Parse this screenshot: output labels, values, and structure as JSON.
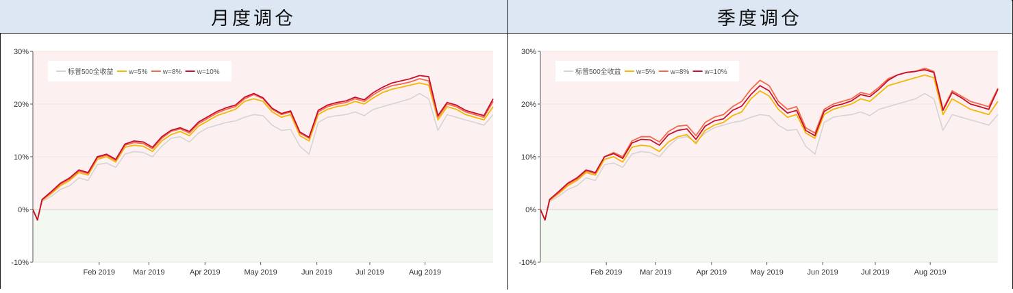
{
  "panels": [
    {
      "title": "月度调仓",
      "chart_data": {
        "type": "line",
        "ylim": [
          -0.1,
          0.3
        ],
        "yticks": [
          "30%",
          "20%",
          "10%",
          "0%",
          "-10%"
        ],
        "ytick_values": [
          0.3,
          0.2,
          0.1,
          0.0,
          -0.1
        ],
        "xticks": [
          "Feb 2019",
          "Mar 2019",
          "Apr 2019",
          "May 2019",
          "Jun 2019",
          "Jul 2019",
          "Aug 2019"
        ],
        "xtick_positions": [
          0.144,
          0.252,
          0.374,
          0.495,
          0.617,
          0.732,
          0.852
        ],
        "legend_position": "top-left",
        "background_positive": "#fdf0f0",
        "background_negative": "#f3f9f1",
        "series": [
          {
            "name": "标普500全收益",
            "color": "#d4d4d4",
            "x": [
              0,
              0.01,
              0.02,
              0.04,
              0.06,
              0.08,
              0.1,
              0.12,
              0.14,
              0.16,
              0.18,
              0.2,
              0.22,
              0.24,
              0.26,
              0.28,
              0.3,
              0.32,
              0.34,
              0.36,
              0.38,
              0.4,
              0.42,
              0.44,
              0.46,
              0.48,
              0.5,
              0.52,
              0.54,
              0.56,
              0.58,
              0.6,
              0.62,
              0.64,
              0.66,
              0.68,
              0.7,
              0.72,
              0.74,
              0.76,
              0.78,
              0.8,
              0.82,
              0.84,
              0.86,
              0.88,
              0.9,
              0.92,
              0.94,
              0.96,
              0.98,
              1.0
            ],
            "y": [
              0.0,
              -0.02,
              0.015,
              0.025,
              0.038,
              0.045,
              0.06,
              0.055,
              0.085,
              0.088,
              0.08,
              0.105,
              0.11,
              0.108,
              0.1,
              0.12,
              0.135,
              0.138,
              0.128,
              0.145,
              0.155,
              0.16,
              0.165,
              0.168,
              0.175,
              0.18,
              0.178,
              0.16,
              0.15,
              0.152,
              0.12,
              0.105,
              0.165,
              0.175,
              0.178,
              0.18,
              0.185,
              0.178,
              0.19,
              0.195,
              0.2,
              0.205,
              0.21,
              0.22,
              0.21,
              0.15,
              0.18,
              0.175,
              0.17,
              0.165,
              0.16,
              0.18
            ]
          },
          {
            "name": "w=5%",
            "color": "#f2b705",
            "x": [
              0,
              0.01,
              0.02,
              0.04,
              0.06,
              0.08,
              0.1,
              0.12,
              0.14,
              0.16,
              0.18,
              0.2,
              0.22,
              0.24,
              0.26,
              0.28,
              0.3,
              0.32,
              0.34,
              0.36,
              0.38,
              0.4,
              0.42,
              0.44,
              0.46,
              0.48,
              0.5,
              0.52,
              0.54,
              0.56,
              0.58,
              0.6,
              0.62,
              0.64,
              0.66,
              0.68,
              0.7,
              0.72,
              0.74,
              0.76,
              0.78,
              0.8,
              0.82,
              0.84,
              0.86,
              0.88,
              0.9,
              0.92,
              0.94,
              0.96,
              0.98,
              1.0
            ],
            "y": [
              0.0,
              -0.02,
              0.017,
              0.03,
              0.045,
              0.055,
              0.07,
              0.065,
              0.095,
              0.1,
              0.09,
              0.118,
              0.122,
              0.12,
              0.11,
              0.13,
              0.142,
              0.148,
              0.14,
              0.158,
              0.168,
              0.178,
              0.184,
              0.19,
              0.205,
              0.21,
              0.205,
              0.185,
              0.175,
              0.18,
              0.14,
              0.13,
              0.18,
              0.19,
              0.195,
              0.198,
              0.205,
              0.2,
              0.212,
              0.222,
              0.228,
              0.232,
              0.236,
              0.24,
              0.236,
              0.17,
              0.195,
              0.19,
              0.18,
              0.175,
              0.17,
              0.195
            ]
          },
          {
            "name": "w=8%",
            "color": "#f26a4b",
            "x": [
              0,
              0.01,
              0.02,
              0.04,
              0.06,
              0.08,
              0.1,
              0.12,
              0.14,
              0.16,
              0.18,
              0.2,
              0.22,
              0.24,
              0.26,
              0.28,
              0.3,
              0.32,
              0.34,
              0.36,
              0.38,
              0.4,
              0.42,
              0.44,
              0.46,
              0.48,
              0.5,
              0.52,
              0.54,
              0.56,
              0.58,
              0.6,
              0.62,
              0.64,
              0.66,
              0.68,
              0.7,
              0.72,
              0.74,
              0.76,
              0.78,
              0.8,
              0.82,
              0.84,
              0.86,
              0.88,
              0.9,
              0.92,
              0.94,
              0.96,
              0.98,
              1.0
            ],
            "y": [
              0.0,
              -0.02,
              0.018,
              0.032,
              0.048,
              0.058,
              0.073,
              0.068,
              0.098,
              0.103,
              0.093,
              0.122,
              0.127,
              0.125,
              0.115,
              0.135,
              0.148,
              0.153,
              0.145,
              0.163,
              0.173,
              0.183,
              0.19,
              0.195,
              0.21,
              0.218,
              0.21,
              0.19,
              0.18,
              0.185,
              0.145,
              0.135,
              0.185,
              0.195,
              0.2,
              0.203,
              0.21,
              0.205,
              0.218,
              0.228,
              0.235,
              0.238,
              0.242,
              0.248,
              0.244,
              0.175,
              0.2,
              0.195,
              0.185,
              0.18,
              0.175,
              0.205
            ]
          },
          {
            "name": "w=10%",
            "color": "#c8102e",
            "x": [
              0,
              0.01,
              0.02,
              0.04,
              0.06,
              0.08,
              0.1,
              0.12,
              0.14,
              0.16,
              0.18,
              0.2,
              0.22,
              0.24,
              0.26,
              0.28,
              0.3,
              0.32,
              0.34,
              0.36,
              0.38,
              0.4,
              0.42,
              0.44,
              0.46,
              0.48,
              0.5,
              0.52,
              0.54,
              0.56,
              0.58,
              0.6,
              0.62,
              0.64,
              0.66,
              0.68,
              0.7,
              0.72,
              0.74,
              0.76,
              0.78,
              0.8,
              0.82,
              0.84,
              0.86,
              0.88,
              0.9,
              0.92,
              0.94,
              0.96,
              0.98,
              1.0
            ],
            "y": [
              0.0,
              -0.02,
              0.019,
              0.034,
              0.05,
              0.06,
              0.075,
              0.07,
              0.1,
              0.105,
              0.095,
              0.124,
              0.13,
              0.128,
              0.118,
              0.138,
              0.15,
              0.155,
              0.148,
              0.166,
              0.176,
              0.186,
              0.193,
              0.198,
              0.213,
              0.22,
              0.212,
              0.192,
              0.182,
              0.187,
              0.147,
              0.137,
              0.188,
              0.198,
              0.203,
              0.206,
              0.213,
              0.208,
              0.222,
              0.232,
              0.24,
              0.244,
              0.248,
              0.254,
              0.252,
              0.178,
              0.203,
              0.198,
              0.188,
              0.183,
              0.178,
              0.21
            ]
          }
        ]
      }
    },
    {
      "title": "季度调仓",
      "chart_data": {
        "type": "line",
        "ylim": [
          -0.1,
          0.3
        ],
        "yticks": [
          "30%",
          "20%",
          "10%",
          "0%",
          "-10%"
        ],
        "ytick_values": [
          0.3,
          0.2,
          0.1,
          0.0,
          -0.1
        ],
        "xticks": [
          "Feb 2019",
          "Mar 2019",
          "Apr 2019",
          "May 2019",
          "Jun 2019",
          "Jul 2019",
          "Aug 2019"
        ],
        "xtick_positions": [
          0.144,
          0.252,
          0.374,
          0.495,
          0.617,
          0.732,
          0.852
        ],
        "legend_position": "top-left",
        "background_positive": "#fdf0f0",
        "background_negative": "#f3f9f1",
        "series": [
          {
            "name": "标普500全收益",
            "color": "#d4d4d4",
            "x": [
              0,
              0.01,
              0.02,
              0.04,
              0.06,
              0.08,
              0.1,
              0.12,
              0.14,
              0.16,
              0.18,
              0.2,
              0.22,
              0.24,
              0.26,
              0.28,
              0.3,
              0.32,
              0.34,
              0.36,
              0.38,
              0.4,
              0.42,
              0.44,
              0.46,
              0.48,
              0.5,
              0.52,
              0.54,
              0.56,
              0.58,
              0.6,
              0.62,
              0.64,
              0.66,
              0.68,
              0.7,
              0.72,
              0.74,
              0.76,
              0.78,
              0.8,
              0.82,
              0.84,
              0.86,
              0.88,
              0.9,
              0.92,
              0.94,
              0.96,
              0.98,
              1.0
            ],
            "y": [
              0.0,
              -0.02,
              0.015,
              0.025,
              0.038,
              0.045,
              0.06,
              0.055,
              0.085,
              0.088,
              0.08,
              0.105,
              0.11,
              0.108,
              0.1,
              0.12,
              0.135,
              0.138,
              0.128,
              0.145,
              0.155,
              0.16,
              0.165,
              0.168,
              0.175,
              0.18,
              0.178,
              0.16,
              0.15,
              0.152,
              0.12,
              0.105,
              0.165,
              0.175,
              0.178,
              0.18,
              0.185,
              0.178,
              0.19,
              0.195,
              0.2,
              0.205,
              0.21,
              0.22,
              0.21,
              0.15,
              0.18,
              0.175,
              0.17,
              0.165,
              0.16,
              0.18
            ]
          },
          {
            "name": "w=5%",
            "color": "#f2b705",
            "x": [
              0,
              0.01,
              0.02,
              0.04,
              0.06,
              0.08,
              0.1,
              0.12,
              0.14,
              0.16,
              0.18,
              0.2,
              0.22,
              0.24,
              0.26,
              0.28,
              0.3,
              0.32,
              0.34,
              0.36,
              0.38,
              0.4,
              0.42,
              0.44,
              0.46,
              0.48,
              0.5,
              0.52,
              0.54,
              0.56,
              0.58,
              0.6,
              0.62,
              0.64,
              0.66,
              0.68,
              0.7,
              0.72,
              0.74,
              0.76,
              0.78,
              0.8,
              0.82,
              0.84,
              0.86,
              0.88,
              0.9,
              0.92,
              0.94,
              0.96,
              0.98,
              1.0
            ],
            "y": [
              0.0,
              -0.02,
              0.017,
              0.03,
              0.045,
              0.055,
              0.07,
              0.065,
              0.095,
              0.1,
              0.09,
              0.118,
              0.122,
              0.12,
              0.11,
              0.128,
              0.138,
              0.142,
              0.125,
              0.15,
              0.16,
              0.165,
              0.178,
              0.185,
              0.21,
              0.225,
              0.215,
              0.19,
              0.175,
              0.18,
              0.145,
              0.135,
              0.18,
              0.19,
              0.195,
              0.2,
              0.21,
              0.205,
              0.22,
              0.235,
              0.24,
              0.245,
              0.25,
              0.255,
              0.25,
              0.18,
              0.21,
              0.2,
              0.19,
              0.185,
              0.18,
              0.205
            ]
          },
          {
            "name": "w=8%",
            "color": "#f26a4b",
            "x": [
              0,
              0.01,
              0.02,
              0.04,
              0.06,
              0.08,
              0.1,
              0.12,
              0.14,
              0.16,
              0.18,
              0.2,
              0.22,
              0.24,
              0.26,
              0.28,
              0.3,
              0.32,
              0.34,
              0.36,
              0.38,
              0.4,
              0.42,
              0.44,
              0.46,
              0.48,
              0.5,
              0.52,
              0.54,
              0.56,
              0.58,
              0.6,
              0.62,
              0.64,
              0.66,
              0.68,
              0.7,
              0.72,
              0.74,
              0.76,
              0.78,
              0.8,
              0.82,
              0.84,
              0.86,
              0.88,
              0.9,
              0.92,
              0.94,
              0.96,
              0.98,
              1.0
            ],
            "y": [
              0.0,
              -0.02,
              0.018,
              0.032,
              0.048,
              0.058,
              0.073,
              0.068,
              0.1,
              0.108,
              0.1,
              0.13,
              0.138,
              0.138,
              0.128,
              0.148,
              0.158,
              0.16,
              0.14,
              0.165,
              0.175,
              0.18,
              0.195,
              0.205,
              0.228,
              0.245,
              0.235,
              0.205,
              0.19,
              0.195,
              0.155,
              0.145,
              0.19,
              0.2,
              0.205,
              0.21,
              0.222,
              0.218,
              0.232,
              0.248,
              0.255,
              0.26,
              0.262,
              0.268,
              0.262,
              0.19,
              0.225,
              0.215,
              0.205,
              0.2,
              0.195,
              0.23
            ]
          },
          {
            "name": "w=10%",
            "color": "#c8102e",
            "x": [
              0,
              0.01,
              0.02,
              0.04,
              0.06,
              0.08,
              0.1,
              0.12,
              0.14,
              0.16,
              0.18,
              0.2,
              0.22,
              0.24,
              0.26,
              0.28,
              0.3,
              0.32,
              0.34,
              0.36,
              0.38,
              0.4,
              0.42,
              0.44,
              0.46,
              0.48,
              0.5,
              0.52,
              0.54,
              0.56,
              0.58,
              0.6,
              0.62,
              0.64,
              0.66,
              0.68,
              0.7,
              0.72,
              0.74,
              0.76,
              0.78,
              0.8,
              0.82,
              0.84,
              0.86,
              0.88,
              0.9,
              0.92,
              0.94,
              0.96,
              0.98,
              1.0
            ],
            "y": [
              0.0,
              -0.02,
              0.019,
              0.034,
              0.05,
              0.06,
              0.075,
              0.07,
              0.1,
              0.106,
              0.097,
              0.126,
              0.133,
              0.132,
              0.122,
              0.142,
              0.15,
              0.153,
              0.133,
              0.158,
              0.168,
              0.172,
              0.188,
              0.196,
              0.218,
              0.235,
              0.225,
              0.198,
              0.183,
              0.188,
              0.15,
              0.14,
              0.186,
              0.196,
              0.2,
              0.206,
              0.218,
              0.214,
              0.228,
              0.245,
              0.255,
              0.26,
              0.262,
              0.265,
              0.26,
              0.188,
              0.222,
              0.212,
              0.2,
              0.195,
              0.19,
              0.228
            ]
          }
        ]
      }
    }
  ]
}
